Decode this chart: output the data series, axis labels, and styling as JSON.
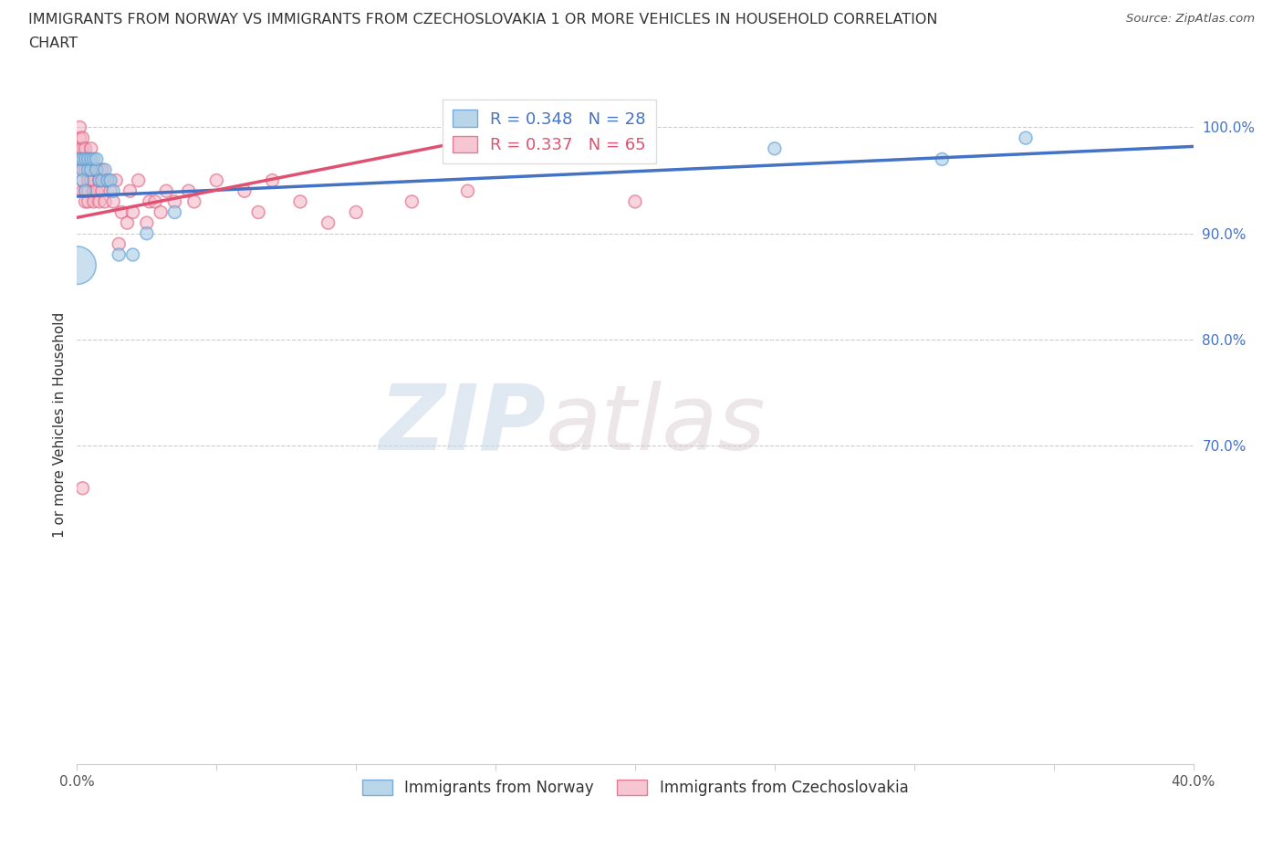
{
  "title_line1": "IMMIGRANTS FROM NORWAY VS IMMIGRANTS FROM CZECHOSLOVAKIA 1 OR MORE VEHICLES IN HOUSEHOLD CORRELATION",
  "title_line2": "CHART",
  "source": "Source: ZipAtlas.com",
  "ylabel": "1 or more Vehicles in Household",
  "xlim": [
    0.0,
    0.4
  ],
  "ylim": [
    0.4,
    1.04
  ],
  "xtick_positions": [
    0.0,
    0.05,
    0.1,
    0.15,
    0.2,
    0.25,
    0.3,
    0.35,
    0.4
  ],
  "xtick_labels": [
    "0.0%",
    "",
    "",
    "",
    "",
    "",
    "",
    "",
    "40.0%"
  ],
  "ytick_positions": [
    1.0,
    0.9,
    0.8,
    0.7
  ],
  "ytick_labels": [
    "100.0%",
    "90.0%",
    "80.0%",
    "70.0%"
  ],
  "norway_color": "#a8cce4",
  "czech_color": "#f4b8c8",
  "norway_edge_color": "#5b9bd5",
  "czech_edge_color": "#e06080",
  "norway_line_color": "#4472c4",
  "czech_line_color": "#e05070",
  "norway_R": 0.348,
  "norway_N": 28,
  "czech_R": 0.337,
  "czech_N": 65,
  "watermark_zip": "ZIP",
  "watermark_atlas": "atlas",
  "norway_x": [
    0.001,
    0.002,
    0.002,
    0.003,
    0.004,
    0.004,
    0.005,
    0.005,
    0.006,
    0.007,
    0.007,
    0.008,
    0.009,
    0.01,
    0.011,
    0.012,
    0.013,
    0.015,
    0.02,
    0.025,
    0.035,
    0.16,
    0.25,
    0.31,
    0.34,
    0.0,
    0.002,
    0.003
  ],
  "norway_y": [
    0.97,
    0.96,
    0.97,
    0.97,
    0.96,
    0.97,
    0.96,
    0.97,
    0.97,
    0.96,
    0.97,
    0.95,
    0.95,
    0.96,
    0.95,
    0.95,
    0.94,
    0.88,
    0.88,
    0.9,
    0.92,
    0.99,
    0.98,
    0.97,
    0.99,
    0.87,
    0.95,
    0.94
  ],
  "norway_sizes": [
    100,
    100,
    100,
    100,
    100,
    100,
    100,
    100,
    100,
    100,
    100,
    100,
    100,
    100,
    100,
    100,
    100,
    100,
    100,
    100,
    100,
    100,
    100,
    100,
    100,
    900,
    100,
    100
  ],
  "czech_x": [
    0.001,
    0.001,
    0.001,
    0.001,
    0.002,
    0.002,
    0.002,
    0.002,
    0.002,
    0.002,
    0.003,
    0.003,
    0.003,
    0.003,
    0.003,
    0.004,
    0.004,
    0.004,
    0.004,
    0.005,
    0.005,
    0.005,
    0.005,
    0.006,
    0.006,
    0.006,
    0.006,
    0.007,
    0.007,
    0.008,
    0.008,
    0.008,
    0.009,
    0.009,
    0.01,
    0.01,
    0.011,
    0.012,
    0.013,
    0.014,
    0.015,
    0.016,
    0.018,
    0.019,
    0.02,
    0.022,
    0.025,
    0.026,
    0.028,
    0.03,
    0.032,
    0.035,
    0.04,
    0.042,
    0.05,
    0.06,
    0.065,
    0.07,
    0.08,
    0.09,
    0.1,
    0.12,
    0.14,
    0.2,
    0.002
  ],
  "czech_y": [
    0.97,
    0.98,
    0.99,
    1.0,
    0.94,
    0.95,
    0.96,
    0.97,
    0.98,
    0.99,
    0.93,
    0.94,
    0.96,
    0.97,
    0.98,
    0.93,
    0.94,
    0.95,
    0.97,
    0.95,
    0.96,
    0.97,
    0.98,
    0.93,
    0.94,
    0.95,
    0.96,
    0.94,
    0.96,
    0.93,
    0.95,
    0.96,
    0.94,
    0.96,
    0.93,
    0.95,
    0.95,
    0.94,
    0.93,
    0.95,
    0.89,
    0.92,
    0.91,
    0.94,
    0.92,
    0.95,
    0.91,
    0.93,
    0.93,
    0.92,
    0.94,
    0.93,
    0.94,
    0.93,
    0.95,
    0.94,
    0.92,
    0.95,
    0.93,
    0.91,
    0.92,
    0.93,
    0.94,
    0.93,
    0.66
  ],
  "czech_sizes": [
    100,
    100,
    100,
    100,
    100,
    100,
    100,
    100,
    100,
    100,
    100,
    100,
    100,
    100,
    100,
    100,
    100,
    100,
    100,
    100,
    100,
    100,
    100,
    100,
    100,
    100,
    100,
    100,
    100,
    100,
    100,
    100,
    100,
    100,
    100,
    100,
    100,
    100,
    100,
    100,
    100,
    100,
    100,
    100,
    100,
    100,
    100,
    100,
    100,
    100,
    100,
    100,
    100,
    100,
    100,
    100,
    100,
    100,
    100,
    100,
    100,
    100,
    100,
    100,
    100
  ],
  "norway_trend_x": [
    0.0,
    0.4
  ],
  "norway_trend_y": [
    0.935,
    0.982
  ],
  "czech_trend_x": [
    0.0,
    0.145
  ],
  "czech_trend_y": [
    0.915,
    0.99
  ]
}
